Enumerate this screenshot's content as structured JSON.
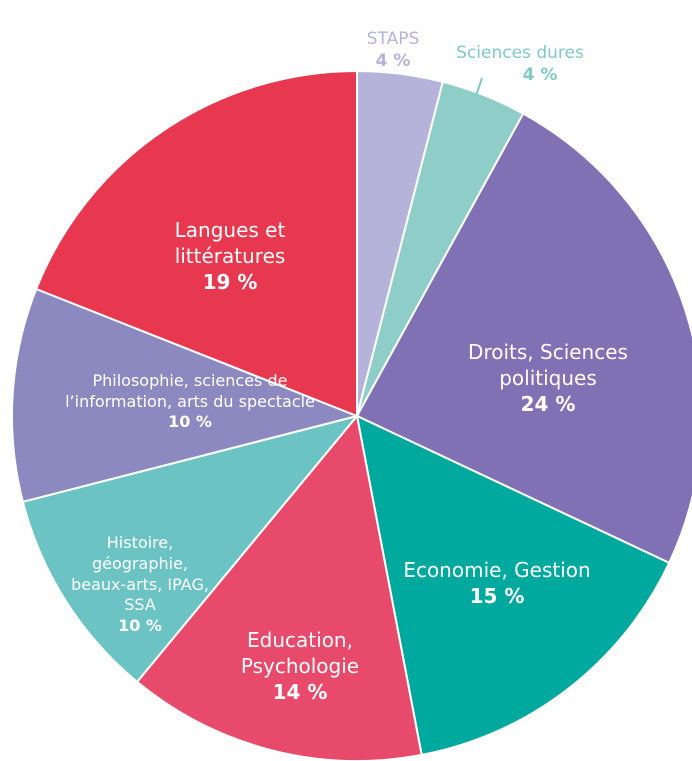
{
  "chart_data": {
    "type": "pie",
    "categories": [
      "STAPS",
      "Sciences dures",
      "Droits, Sciences politiques",
      "Economie, Gestion",
      "Education, Psychologie",
      "Histoire, géographie, beaux-arts, IPAG, SSA",
      "Philosophie, sciences de l’information, arts du spectacle",
      "Langues et littératures"
    ],
    "values": [
      4,
      4,
      24,
      15,
      14,
      10,
      10,
      19
    ],
    "value_labels": [
      "4 %",
      "4 %",
      "24 %",
      "15 %",
      "14 %",
      "10 %",
      "10 %",
      "19 %"
    ],
    "colors": [
      "#b5b3da",
      "#8fcdc8",
      "#8071b4",
      "#00a99d",
      "#e84a6b",
      "#6cc3c4",
      "#8c89c0",
      "#e8384f"
    ]
  }
}
